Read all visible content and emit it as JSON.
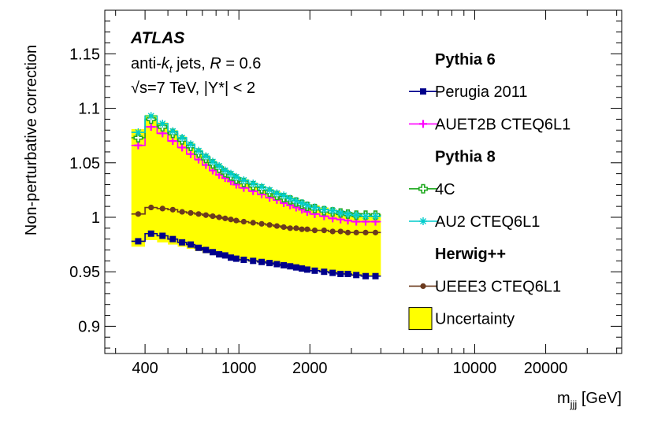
{
  "chart_data": {
    "type": "line",
    "ylabel": "Non-perturbative correction",
    "xlabel_main": "m",
    "xlabel_sub": "jjj",
    "xlabel_unit": " [GeV]",
    "xscale": "log",
    "xlim": [
      270,
      42000
    ],
    "ylim": [
      0.875,
      1.19
    ],
    "x_ticks": [
      {
        "value": 400,
        "label": "400"
      },
      {
        "value": 1000,
        "label": "1000"
      },
      {
        "value": 2000,
        "label": "2000"
      },
      {
        "value": 10000,
        "label": "10000"
      },
      {
        "value": 20000,
        "label": "20000"
      }
    ],
    "y_ticks": [
      {
        "value": 0.9,
        "label": "0.9"
      },
      {
        "value": 0.95,
        "label": "0.95"
      },
      {
        "value": 1.0,
        "label": "1"
      },
      {
        "value": 1.05,
        "label": "1.05"
      },
      {
        "value": 1.1,
        "label": "1.1"
      },
      {
        "value": 1.15,
        "label": "1.15"
      }
    ],
    "annotations": {
      "experiment": "ATLAS",
      "jets_prefix": "anti-",
      "jets_k": "k",
      "jets_k_sub": "t",
      "jets_suffix": " jets,  ",
      "radius_symbol": "R",
      "radius_value": " = 0.6",
      "energy": "√s=7 TeV,  |Y*| < 2"
    },
    "x_edges": [
      350,
      400,
      450,
      500,
      550,
      600,
      650,
      700,
      750,
      800,
      850,
      900,
      950,
      1000,
      1100,
      1200,
      1300,
      1400,
      1500,
      1600,
      1700,
      1800,
      1900,
      2000,
      2200,
      2400,
      2600,
      2800,
      3000,
      3300,
      3600,
      4000
    ],
    "uncertainty": {
      "label": "Uncertainty",
      "color": "#ffff00",
      "low": [
        0.973,
        0.979,
        0.977,
        0.975,
        0.973,
        0.971,
        0.969,
        0.967,
        0.966,
        0.964,
        0.963,
        0.962,
        0.961,
        0.96,
        0.959,
        0.958,
        0.957,
        0.956,
        0.955,
        0.954,
        0.953,
        0.953,
        0.952,
        0.951,
        0.95,
        0.949,
        0.948,
        0.947,
        0.946,
        0.946,
        0.946
      ],
      "high": [
        1.081,
        1.094,
        1.087,
        1.08,
        1.074,
        1.068,
        1.062,
        1.057,
        1.052,
        1.048,
        1.044,
        1.041,
        1.038,
        1.035,
        1.032,
        1.029,
        1.026,
        1.024,
        1.021,
        1.019,
        1.017,
        1.015,
        1.013,
        1.011,
        1.009,
        1.007,
        1.006,
        1.004,
        1.003,
        1.003,
        1.003
      ]
    },
    "legend_groups": [
      "Pythia 6",
      "Pythia 8",
      "Herwig++"
    ],
    "series": [
      {
        "name": "Perugia 2011",
        "group": "Pythia 6",
        "color": "#00008b",
        "marker": "square",
        "values": [
          0.978,
          0.985,
          0.983,
          0.98,
          0.977,
          0.975,
          0.972,
          0.97,
          0.968,
          0.966,
          0.965,
          0.963,
          0.962,
          0.961,
          0.96,
          0.959,
          0.958,
          0.957,
          0.956,
          0.955,
          0.954,
          0.953,
          0.952,
          0.951,
          0.95,
          0.949,
          0.948,
          0.948,
          0.947,
          0.946,
          0.946
        ]
      },
      {
        "name": "AUET2B CTEQ6L1",
        "group": "Pythia 6",
        "color": "#ff00ff",
        "marker": "plus",
        "values": [
          1.066,
          1.083,
          1.077,
          1.07,
          1.064,
          1.058,
          1.053,
          1.048,
          1.043,
          1.039,
          1.036,
          1.033,
          1.03,
          1.027,
          1.024,
          1.021,
          1.018,
          1.016,
          1.013,
          1.011,
          1.009,
          1.007,
          1.005,
          1.003,
          1.001,
          0.999,
          0.998,
          0.997,
          0.996,
          0.996,
          0.996
        ]
      },
      {
        "name": "4C",
        "group": "Pythia 8",
        "color": "#22aa22",
        "marker": "open-cross",
        "values": [
          1.073,
          1.09,
          1.083,
          1.077,
          1.071,
          1.065,
          1.059,
          1.054,
          1.049,
          1.045,
          1.041,
          1.038,
          1.035,
          1.032,
          1.029,
          1.026,
          1.023,
          1.02,
          1.018,
          1.016,
          1.014,
          1.012,
          1.01,
          1.008,
          1.006,
          1.005,
          1.004,
          1.003,
          1.002,
          1.002,
          1.002
        ]
      },
      {
        "name": "AU2 CTEQ6L1",
        "group": "Pythia 8",
        "color": "#00cccc",
        "marker": "star",
        "values": [
          1.078,
          1.093,
          1.086,
          1.079,
          1.073,
          1.067,
          1.061,
          1.056,
          1.051,
          1.047,
          1.043,
          1.04,
          1.037,
          1.034,
          1.031,
          1.028,
          1.025,
          1.022,
          1.02,
          1.017,
          1.015,
          1.013,
          1.011,
          1.009,
          1.007,
          1.006,
          1.004,
          1.003,
          1.002,
          1.001,
          1.001
        ]
      },
      {
        "name": "UEEE3 CTEQ6L1",
        "group": "Herwig++",
        "color": "#6b3a1e",
        "marker": "circle",
        "values": [
          1.003,
          1.009,
          1.008,
          1.007,
          1.005,
          1.004,
          1.003,
          1.002,
          1.001,
          1.0,
          0.999,
          0.998,
          0.997,
          0.996,
          0.995,
          0.994,
          0.993,
          0.992,
          0.991,
          0.99,
          0.99,
          0.989,
          0.989,
          0.988,
          0.988,
          0.987,
          0.987,
          0.986,
          0.986,
          0.986,
          0.986
        ]
      }
    ]
  }
}
